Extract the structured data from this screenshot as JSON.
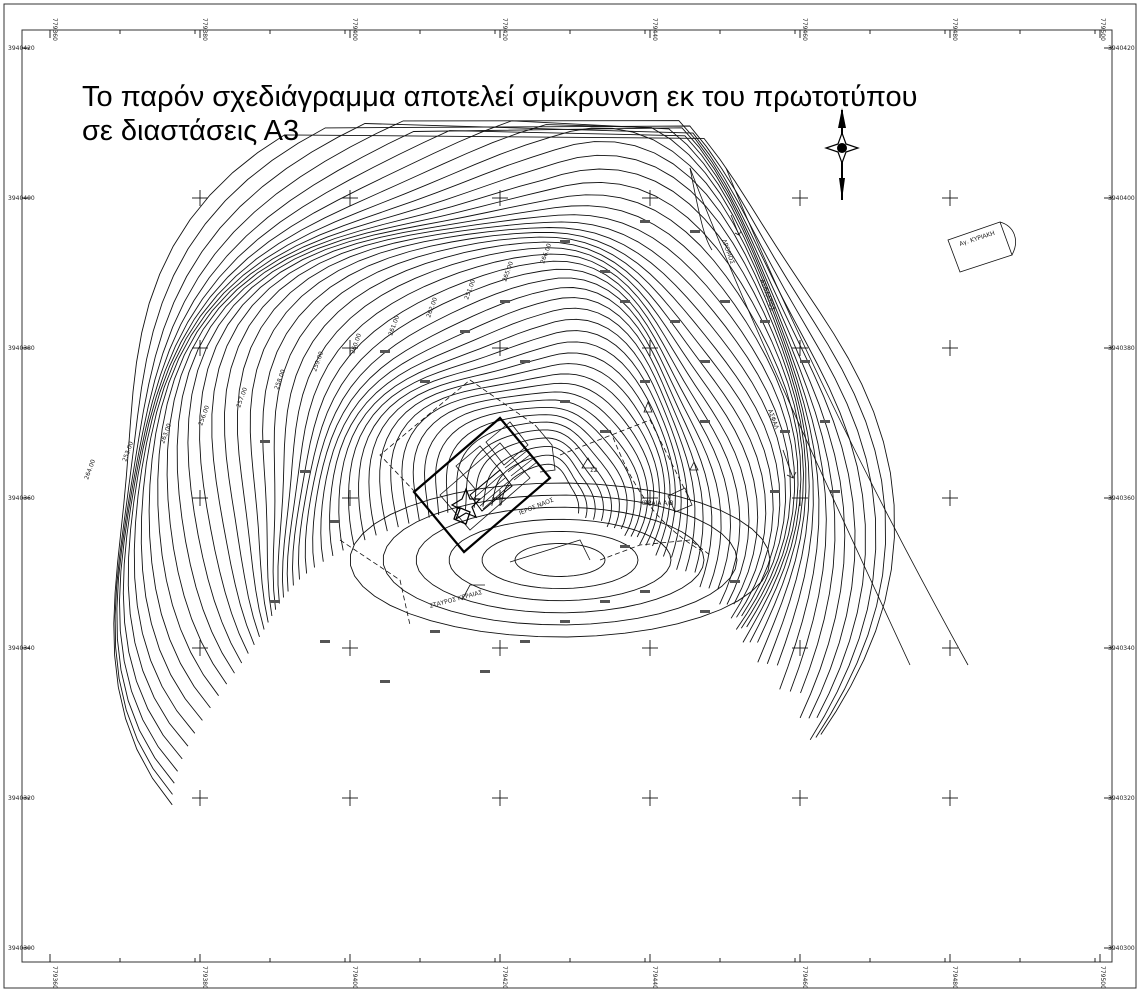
{
  "note": {
    "line1": "Το παρόν σχεδιάγραμμα αποτελεί σμίκρυνση εκ του πρωτοτύπου",
    "line2": "σε διαστάσεις Α3"
  },
  "map": {
    "coord_labels_top": [
      "779360",
      "779380",
      "779400",
      "779420",
      "779440",
      "779460",
      "779480",
      "779500"
    ],
    "coord_labels_bottom": [
      "779360",
      "779380",
      "779400",
      "779420",
      "779440",
      "779460",
      "779480",
      "779500"
    ],
    "coord_labels_left": [
      "3940420",
      "3940400",
      "3940380",
      "3940360",
      "3940340",
      "3940320",
      "3940300"
    ],
    "coord_labels_right": [
      "3940420",
      "3940400",
      "3940380",
      "3940360",
      "3940340",
      "3940320",
      "3940300"
    ],
    "features": {
      "chapel_label": "Αγ. ΚΥΡΙΑΚΗ",
      "road_label_1": "ΑΣΦΑΛΤΟΣ",
      "road_label_2": "ΔΡΟΜΟΣ",
      "road_label_3": "ΑΣΦΑΛ",
      "church_label": "ΙΕΡΟΣ ΝΑΟΣ",
      "cross_label": "ΣΤΑΥΡΟΣ ΚΕΡΑΙΑΣ",
      "tank_label": "ΚΕΡΑΙΑ Α/Β",
      "station_label": "Σ2",
      "contour_labels": [
        "264.00",
        "253.00",
        "263.00",
        "256.00",
        "257.00",
        "258.00",
        "259.00",
        "260.00",
        "261.00",
        "262.00",
        "251.00",
        "265.00",
        "266.00"
      ]
    }
  }
}
